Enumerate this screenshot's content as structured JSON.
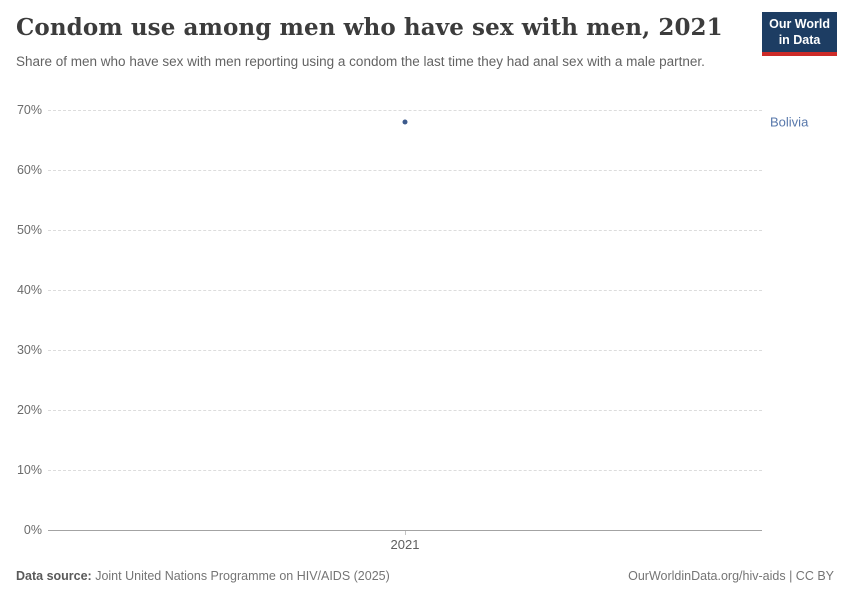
{
  "header": {
    "title": "Condom use among men who have sex with men, 2021",
    "subtitle": "Share of men who have sex with men reporting using a condom the last time they had anal sex with a male partner.",
    "logo": {
      "line1": "Our World",
      "line2": "in Data"
    }
  },
  "chart_data": {
    "type": "scatter",
    "title": "Condom use among men who have sex with men, 2021",
    "series": [
      {
        "name": "Bolivia",
        "x": [
          2021
        ],
        "values": [
          68
        ]
      }
    ],
    "xlabel": "",
    "ylabel": "",
    "ylim": [
      0,
      70
    ],
    "yticks": [
      0,
      10,
      20,
      30,
      40,
      50,
      60,
      70
    ],
    "ytick_suffix": "%",
    "xticks": [
      "2021"
    ],
    "grid": "horizontal-dashed",
    "legend_position": "label-right-of-plot",
    "point_color": "#3d5a8c",
    "label_color": "#5878ab"
  },
  "footer": {
    "source_label": "Data source:",
    "source_text": " Joint United Nations Programme on HIV/AIDS (2025)",
    "rights": "OurWorldinData.org/hiv-aids | CC BY"
  },
  "colors": {
    "accent_blue": "#4c6a9c",
    "logo_navy": "#1d3d63",
    "logo_red": "#cd2b28",
    "gridline": "#dcdcdc",
    "axis_line": "#a3a3a3"
  }
}
